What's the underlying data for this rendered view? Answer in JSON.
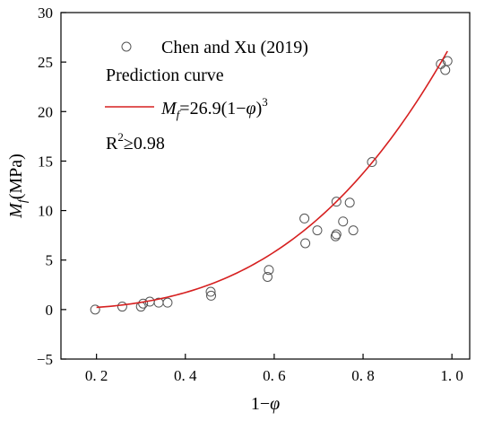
{
  "chart_data": {
    "type": "scatter",
    "xlabel": "1−φ",
    "ylabel": "M",
    "ylabel_sub": "f",
    "ylabel_unit": "(MPa)",
    "xlim": [
      0.12,
      1.04
    ],
    "ylim": [
      -5,
      30
    ],
    "xticks": [
      0.2,
      0.4,
      0.6,
      0.8,
      1.0
    ],
    "xtick_labels": [
      "0. 2",
      "0. 4",
      "0. 6",
      "0. 8",
      "1. 0"
    ],
    "yticks": [
      -5,
      0,
      5,
      10,
      15,
      20,
      25,
      30
    ],
    "ytick_labels": [
      "−5",
      "0",
      "5",
      "10",
      "15",
      "20",
      "25",
      "30"
    ],
    "grid": false,
    "legend_position": "top-left",
    "series": [
      {
        "name": "Chen and Xu (2019)",
        "kind": "scatter",
        "marker": "open-circle",
        "color": "#555555",
        "points": [
          [
            0.197,
            0.0
          ],
          [
            0.258,
            0.3
          ],
          [
            0.3,
            0.3
          ],
          [
            0.305,
            0.6
          ],
          [
            0.32,
            0.8
          ],
          [
            0.34,
            0.7
          ],
          [
            0.36,
            0.7
          ],
          [
            0.457,
            1.8
          ],
          [
            0.458,
            1.4
          ],
          [
            0.585,
            3.3
          ],
          [
            0.588,
            4.0
          ],
          [
            0.668,
            9.2
          ],
          [
            0.67,
            6.7
          ],
          [
            0.697,
            8.0
          ],
          [
            0.738,
            7.4
          ],
          [
            0.74,
            10.9
          ],
          [
            0.74,
            7.6
          ],
          [
            0.755,
            8.9
          ],
          [
            0.77,
            10.8
          ],
          [
            0.778,
            8.0
          ],
          [
            0.82,
            14.9
          ],
          [
            0.975,
            24.8
          ],
          [
            0.985,
            24.2
          ],
          [
            0.99,
            25.1
          ]
        ]
      },
      {
        "name": "Prediction curve",
        "kind": "line",
        "color": "#d62020",
        "equation": {
          "prefix": "M",
          "sub": "f",
          "body": "=26.9(1−",
          "phi": "φ",
          "close": ")",
          "sup": "3"
        },
        "coefficient": 26.9,
        "exponent": 3,
        "x_range": [
          0.2,
          0.99
        ]
      }
    ],
    "annotation": {
      "text": "R",
      "sup": "2",
      "suffix": "≥0.98"
    }
  }
}
